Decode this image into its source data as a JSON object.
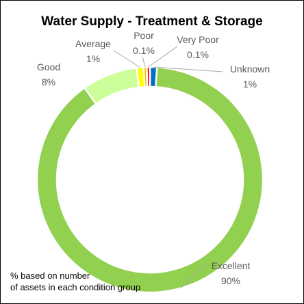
{
  "title": "Water Supply - Treatment & Storage",
  "footnote": {
    "line1": "% based on number",
    "line2": "of assets in each condition group"
  },
  "chart_data": {
    "type": "pie",
    "variant": "donut",
    "title": "Water Supply - Treatment & Storage",
    "value_unit": "%",
    "slices": [
      {
        "label": "Excellent",
        "value_label": "90%",
        "value": 89.8,
        "color": "#92d050"
      },
      {
        "label": "Good",
        "value_label": "8%",
        "value": 8.0,
        "color": "#ccff99"
      },
      {
        "label": "Average",
        "value_label": "1%",
        "value": 1.0,
        "color": "#ffff00"
      },
      {
        "label": "Poor",
        "value_label": "0.1%",
        "value": 0.1,
        "color": "#ffc000"
      },
      {
        "label": "Very Poor",
        "value_label": "0.1%",
        "value": 0.1,
        "color": "#ff0000"
      },
      {
        "label": "Unknown",
        "value_label": "1%",
        "value": 1.0,
        "color": "#0070c0"
      }
    ],
    "start": "top, clockwise (Unknown first)"
  }
}
